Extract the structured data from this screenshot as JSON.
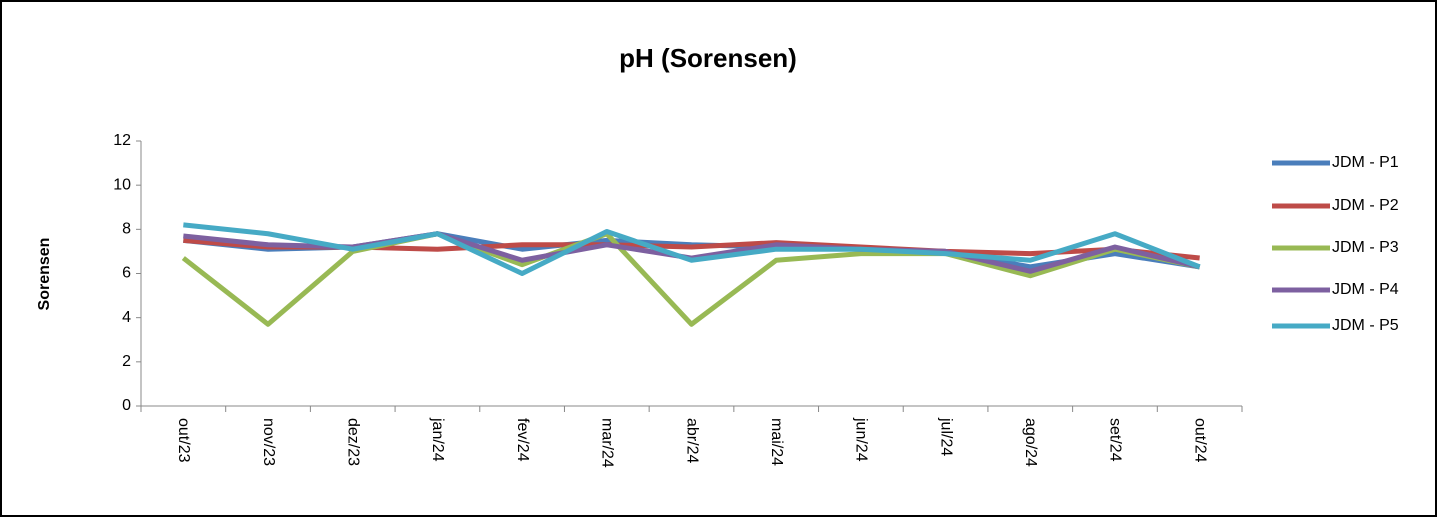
{
  "chart_data": {
    "type": "line",
    "title": "pH (Sorensen)",
    "y_label": "Sorensen",
    "categories": [
      "out/23",
      "nov/23",
      "dez/23",
      "jan/24",
      "fev/24",
      "mar/24",
      "abr/24",
      "mai/24",
      "jun/24",
      "jul/24",
      "ago/24",
      "set/24",
      "out/24"
    ],
    "series": [
      {
        "name": "JDM - P1",
        "color": "#4a7ebb",
        "values": [
          7.5,
          7.1,
          7.2,
          7.8,
          7.1,
          7.5,
          7.3,
          7.2,
          7.1,
          7.0,
          6.3,
          6.9,
          6.3
        ]
      },
      {
        "name": "JDM - P2",
        "color": "#be4b48",
        "values": [
          7.5,
          7.2,
          7.2,
          7.1,
          7.3,
          7.3,
          7.2,
          7.4,
          7.2,
          7.0,
          6.9,
          7.1,
          6.7
        ]
      },
      {
        "name": "JDM - P3",
        "color": "#98b954",
        "values": [
          6.7,
          3.7,
          7.0,
          7.8,
          6.4,
          7.8,
          3.7,
          6.6,
          6.9,
          6.9,
          5.9,
          7.1,
          6.3
        ]
      },
      {
        "name": "JDM - P4",
        "color": "#7d60a0",
        "values": [
          7.7,
          7.3,
          7.2,
          7.8,
          6.6,
          7.3,
          6.7,
          7.3,
          7.1,
          7.0,
          6.1,
          7.2,
          6.3
        ]
      },
      {
        "name": "JDM - P5",
        "color": "#46aac5",
        "values": [
          8.2,
          7.8,
          7.1,
          7.8,
          6.0,
          7.9,
          6.6,
          7.1,
          7.1,
          6.9,
          6.6,
          7.8,
          6.3
        ]
      }
    ],
    "ylim": [
      0,
      12
    ],
    "yticks": [
      0,
      2,
      4,
      6,
      8,
      10,
      12
    ],
    "grid": false,
    "legend": "right"
  }
}
